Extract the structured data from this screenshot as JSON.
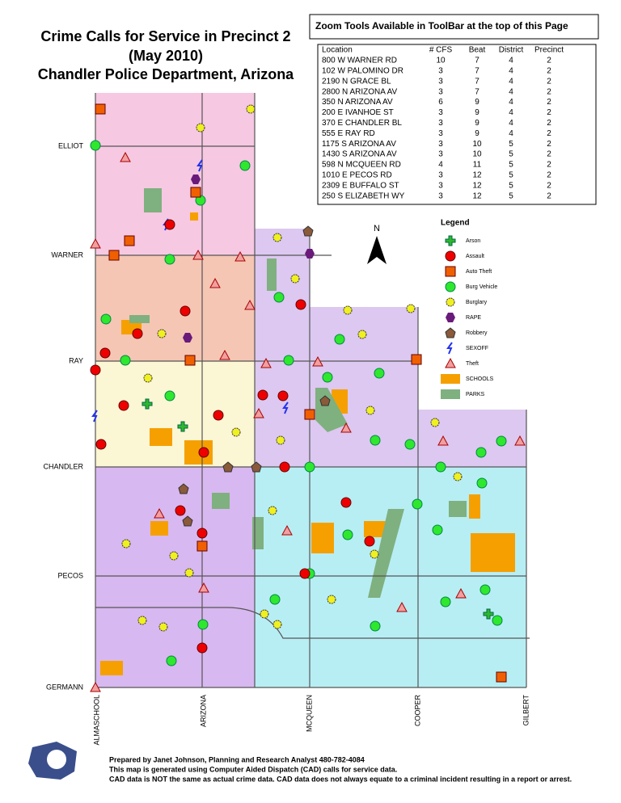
{
  "title": [
    "Crime Calls for Service in Precinct 2",
    "(May 2010)",
    "Chandler Police Department, Arizona"
  ],
  "toolbar_note": "Zoom Tools Available in ToolBar at the top of this Page",
  "table": {
    "columns": [
      "Location",
      "# CFS",
      "Beat",
      "District",
      "Precinct"
    ],
    "rows": [
      [
        "800 W WARNER RD",
        10,
        7,
        4,
        2
      ],
      [
        "102 W PALOMINO DR",
        3,
        7,
        4,
        2
      ],
      [
        "2190 N GRACE BL",
        3,
        7,
        4,
        2
      ],
      [
        "2800 N ARIZONA AV",
        3,
        7,
        4,
        2
      ],
      [
        "350 N ARIZONA AV",
        6,
        9,
        4,
        2
      ],
      [
        "200 E IVANHOE ST",
        3,
        9,
        4,
        2
      ],
      [
        "370 E CHANDLER BL",
        3,
        9,
        4,
        2
      ],
      [
        "555 E RAY RD",
        3,
        9,
        4,
        2
      ],
      [
        "1175 S ARIZONA AV",
        3,
        10,
        5,
        2
      ],
      [
        "1430 S ARIZONA AV",
        3,
        10,
        5,
        2
      ],
      [
        "598 N MCQUEEN RD",
        4,
        11,
        5,
        2
      ],
      [
        "1010 E PECOS RD",
        3,
        12,
        5,
        2
      ],
      [
        "2309 E BUFFALO ST",
        3,
        12,
        5,
        2
      ],
      [
        "250 S ELIZABETH WY",
        3,
        12,
        5,
        2
      ]
    ]
  },
  "north": "N",
  "legend": {
    "title": "Legend",
    "items": [
      "Arson",
      "Assault",
      "Auto Theft",
      "Burg Vehicle",
      "Burglary",
      "RAPE",
      "Robbery",
      "SEXOFF",
      "Theft",
      "SCHOOLS",
      "PARKS"
    ]
  },
  "streets": {
    "horizontal": [
      "ELLIOT",
      "WARNER",
      "RAY",
      "CHANDLER",
      "PECOS",
      "GERMANN"
    ],
    "vertical": [
      "ALMASCHOOL",
      "ARIZONA",
      "MCQUEEN",
      "COOPER",
      "GILBERT"
    ]
  },
  "footer": [
    "Prepared by Janet Johnson, Planning and Research Analyst 480-782-4084",
    "This map is generated using Computer Aided Dispatch (CAD) calls for service data.",
    "CAD data is NOT the same as actual crime data.  CAD data does not always equate to a criminal incident resulting in a report or arrest."
  ]
}
